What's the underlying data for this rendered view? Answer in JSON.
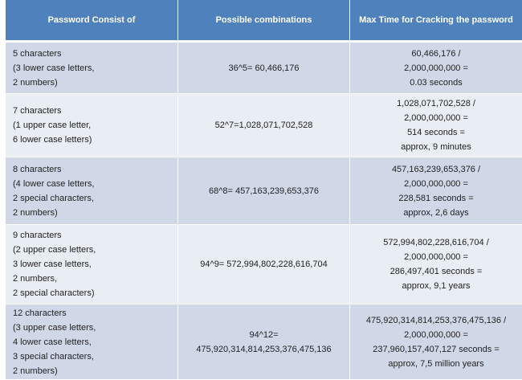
{
  "table": {
    "headers": [
      "Password Consist of",
      "Possible combinations",
      "Max Time for Cracking the password"
    ],
    "rows": [
      {
        "consist": "5 characters\n(3 lower case letters,\n2 numbers)",
        "combinations": "36^5= 60,466,176",
        "time": "60,466,176 /\n2,000,000,000 =\n0.03 seconds"
      },
      {
        "consist": "7 characters\n(1 upper case letter,\n6 lower case letters)",
        "combinations": "52^7=1,028,071,702,528",
        "time": "1,028,071,702,528 /\n2,000,000,000 =\n514 seconds =\napprox, 9 minutes"
      },
      {
        "consist": "8 characters\n(4 lower case letters,\n2 special characters,\n2 numbers)",
        "combinations": "68^8= 457,163,239,653,376",
        "time": "457,163,239,653,376 /\n2,000,000,000 =\n228,581 seconds =\napprox, 2,6 days"
      },
      {
        "consist": "9 characters\n(2 upper case letters,\n3 lower case letters,\n2 numbers,\n2 special characters)",
        "combinations": "94^9= 572,994,802,228,616,704",
        "time": "572,994,802,228,616,704 /\n2,000,000,000 =\n286,497,401 seconds =\napprox, 9,1 years"
      },
      {
        "consist": "12 characters\n(3 upper case letters,\n4 lower case letters,\n3 special characters,\n2 numbers)",
        "combinations": "94^12=\n475,920,314,814,253,376,475,136",
        "time": "475,920,314,814,253,376,475,136 /\n2,000,000,000 =\n237,960,157,407,127 seconds =\napprox, 7,5 million years"
      }
    ]
  },
  "colors": {
    "header": "#4f81bd",
    "row_odd": "#d0d8e8",
    "row_even": "#e9edf4"
  }
}
